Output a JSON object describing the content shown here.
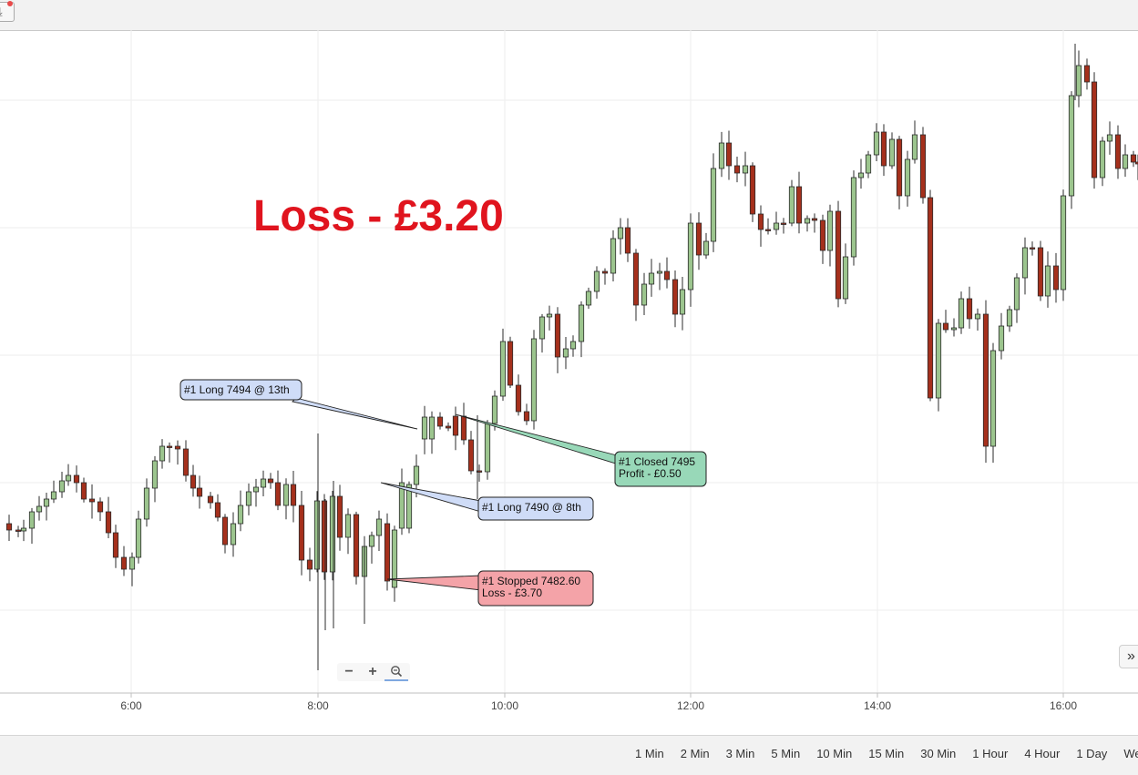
{
  "toolbar": {
    "download_icon": "download-icon",
    "download_accent": "#e84a4a"
  },
  "headline": "Loss - £3.20",
  "headline_color": "#e0141e",
  "chart_data": {
    "type": "candlestick",
    "x_axis": {
      "ticks": [
        "6:00",
        "8:00",
        "10:00",
        "12:00",
        "14:00",
        "16:00"
      ]
    },
    "y_axis": {
      "gridlines": true,
      "labels_visible": false
    },
    "colors": {
      "up": "#9cc58e",
      "down": "#a5301c",
      "outline": "#2b2b2b"
    },
    "annotations": [
      {
        "lines": [
          "#1 Long 7494 @ 13th"
        ],
        "fill": "#cfdcf7"
      },
      {
        "lines": [
          "#1 Closed 7495",
          "Profit - £0.50"
        ],
        "fill": "#98d8b8"
      },
      {
        "lines": [
          "#1 Long 7490 @ 8th"
        ],
        "fill": "#cfdcf7"
      },
      {
        "lines": [
          "#1 Stopped 7482.60",
          "Loss - £3.70"
        ],
        "fill": "#f4a3a8"
      }
    ]
  },
  "zoom": {
    "minus": "−",
    "plus": "+",
    "reset_icon": "zoom-reset-icon"
  },
  "expander": {
    "icon": "double-chevron-right-icon",
    "glyph": "»"
  },
  "periods": [
    "1 Min",
    "2 Min",
    "3 Min",
    "5 Min",
    "10 Min",
    "15 Min",
    "30 Min",
    "1 Hour",
    "4 Hour",
    "1 Day",
    "Week"
  ]
}
